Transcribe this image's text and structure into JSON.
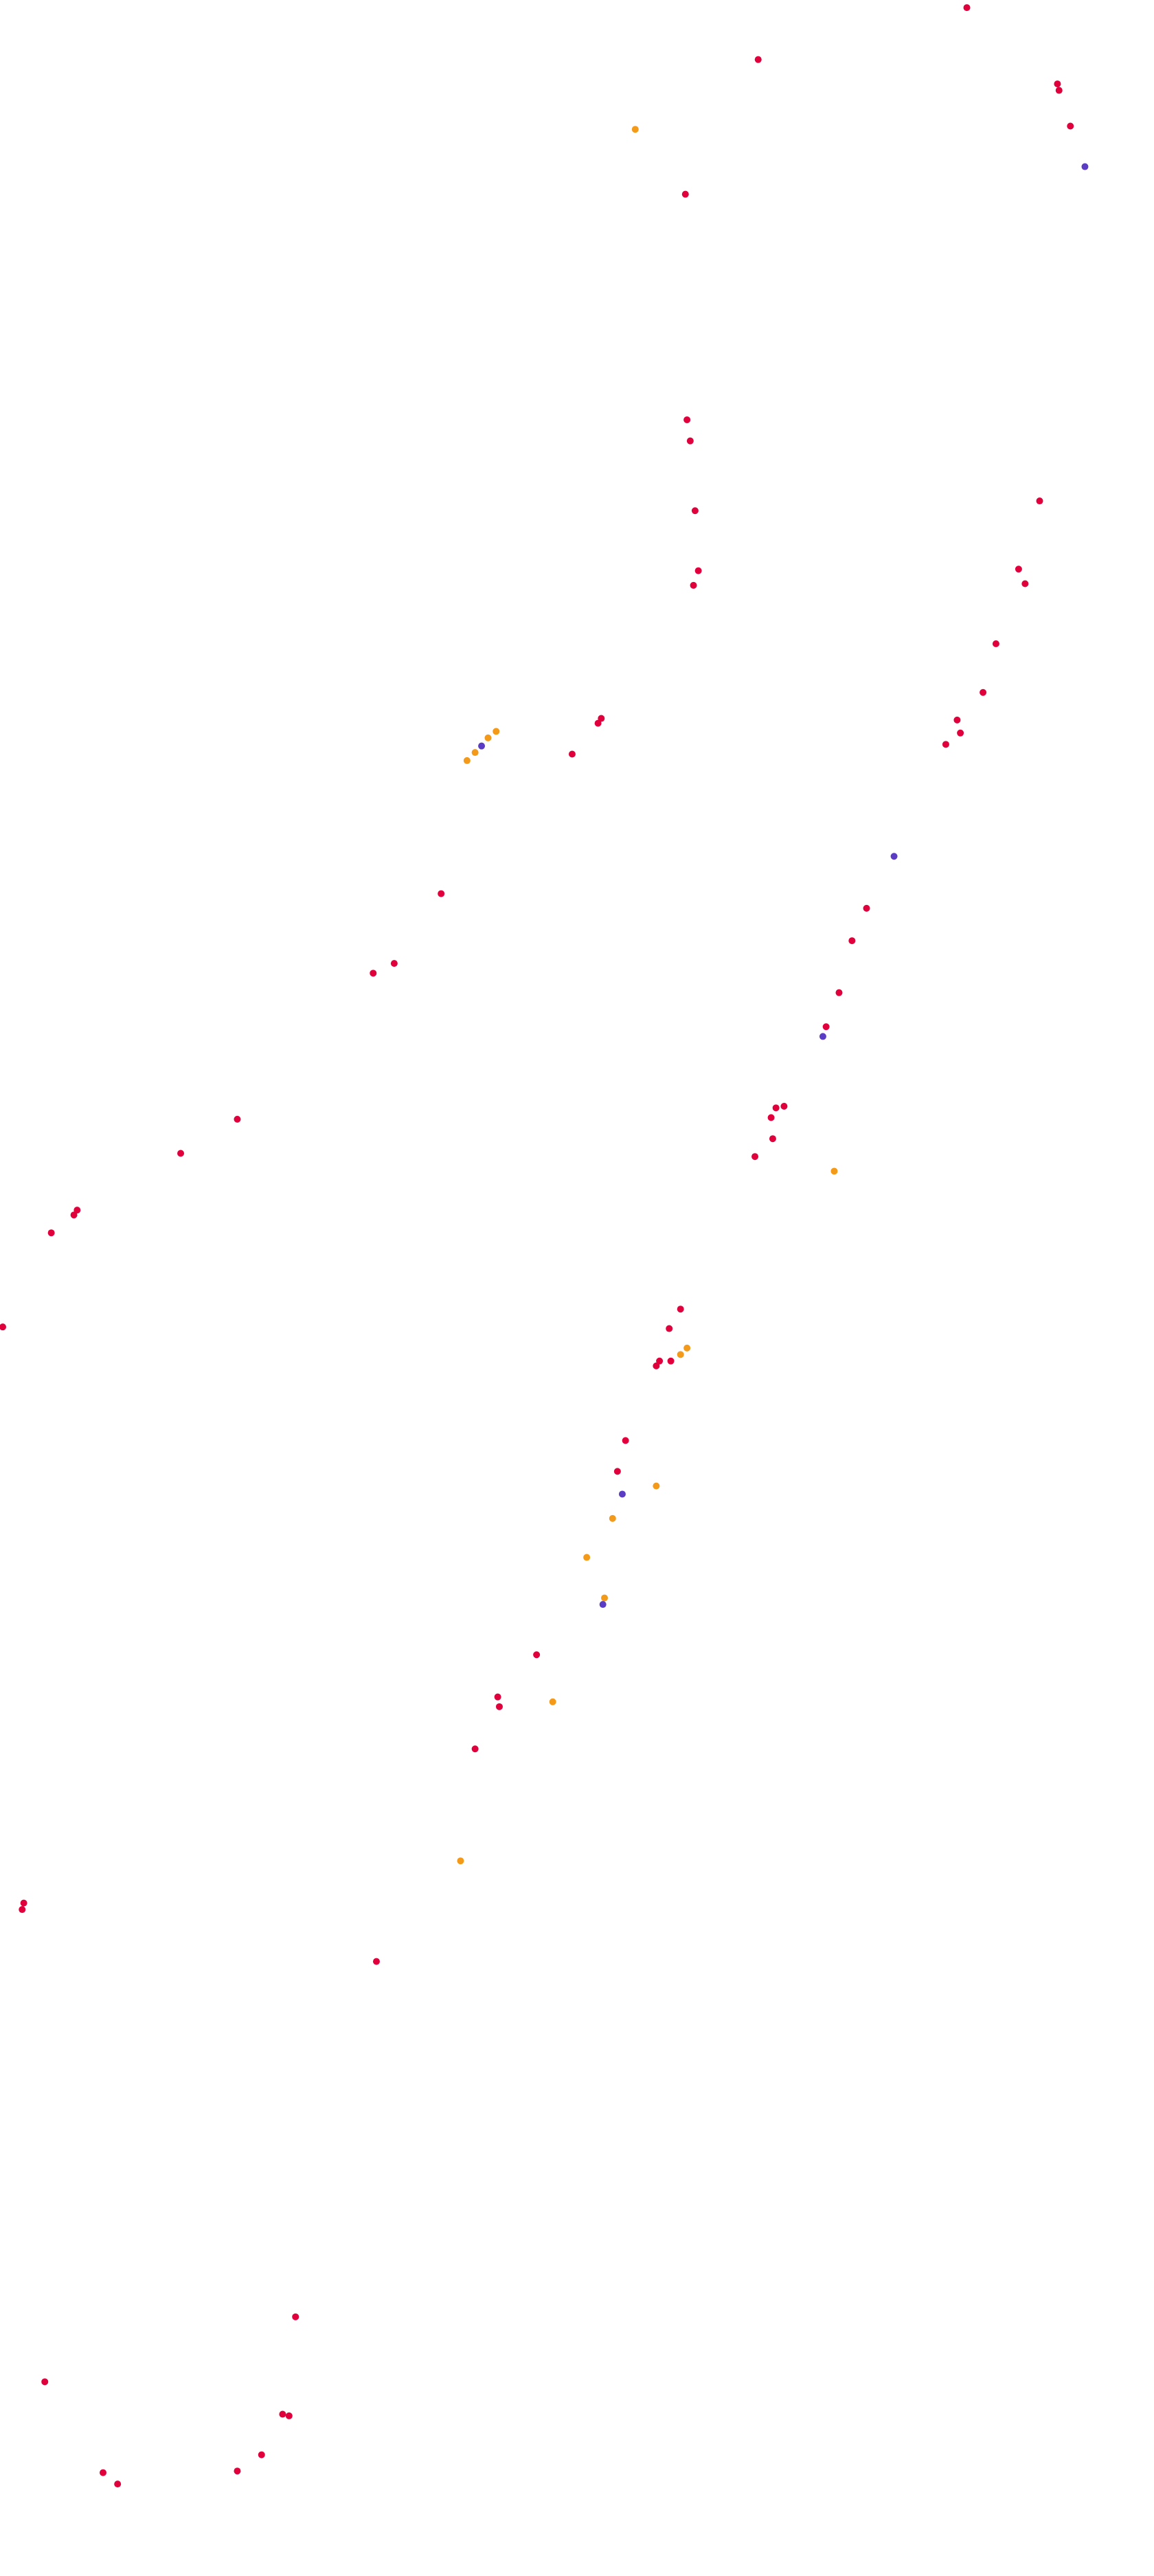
{
  "chart_data": {
    "type": "scatter",
    "xlim": [
      0,
      710
    ],
    "ylim": [
      1584,
      0
    ],
    "series": [
      {
        "color": "#e0003c",
        "x": [
          596,
          467,
          652,
          653,
          660,
          422,
          423,
          425,
          428,
          430,
          427,
          641,
          628,
          632,
          614,
          606,
          590,
          592,
          583,
          370,
          368,
          352,
          271,
          242,
          229,
          534,
          525,
          517,
          509,
          478,
          483,
          475,
          476,
          465,
          145,
          110,
          46,
          44,
          30,
          0,
          419,
          412,
          406,
          404,
          413,
          385,
          380,
          330,
          306,
          307,
          292,
          13,
          12,
          231,
          181,
          26,
          173,
          177,
          160,
          62,
          71,
          145
        ],
        "values": [
          3,
          35,
          50,
          54,
          76,
          118,
          257,
          270,
          313,
          350,
          359,
          307,
          349,
          358,
          395,
          425,
          442,
          450,
          457,
          441,
          444,
          463,
          549,
          592,
          598,
          558,
          578,
          610,
          631,
          681,
          680,
          687,
          700,
          711,
          688,
          709,
          744,
          747,
          758,
          816,
          805,
          817,
          837,
          840,
          837,
          886,
          905,
          1018,
          1044,
          1050,
          1076,
          1171,
          1175,
          1207,
          1426,
          1466,
          1486,
          1487,
          1511,
          1522,
          1529,
          1521
        ]
      },
      {
        "color": "#f39a1a",
        "x": [
          391,
          305,
          300,
          292,
          287,
          514,
          423,
          419,
          404,
          377,
          361,
          372,
          340,
          283
        ],
        "values": [
          78,
          449,
          453,
          462,
          467,
          720,
          829,
          833,
          914,
          934,
          958,
          983,
          1047,
          1145
        ]
      },
      {
        "color": "#5b3cc4",
        "x": [
          669,
          296,
          551,
          507,
          383,
          371
        ],
        "values": [
          101,
          458,
          526,
          637,
          919,
          987
        ]
      }
    ]
  }
}
